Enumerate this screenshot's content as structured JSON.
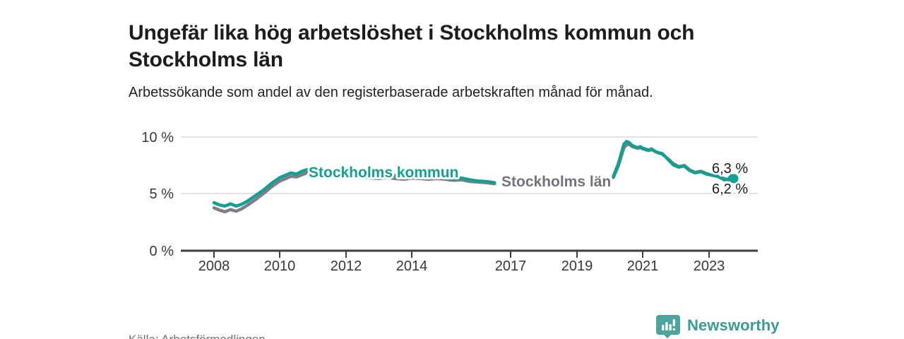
{
  "header": {
    "title": "Ungefär lika hög arbetslöshet i Stockholms kommun och Stockholms län",
    "subtitle": "Arbetssökande som andel av den registerbaserade arbetskraften månad för månad."
  },
  "footer": {
    "source": "Källa: Arbetsförmedlingen",
    "brand_name": "Newsworthy",
    "brand_icon": "bar-chart-speech-bubble-icon"
  },
  "colors": {
    "kommun_line": "#11a092",
    "lan_line": "#7e7e84",
    "kommun_label": "#11a092",
    "lan_label": "#73737b",
    "grid": "#dbdbdb",
    "axis": "#3f3f41",
    "title_text": "#1c1c1a",
    "muted_text": "#6f6f78",
    "brand_teal": "#3c9b94",
    "logo_bubble": "#4ba49e"
  },
  "chart_data": {
    "type": "line",
    "title": "Ungefär lika hög arbetslöshet i Stockholms kommun och Stockholms län",
    "subtitle": "Arbetssökande som andel av den registerbaserade arbetskraften månad för månad.",
    "unit": "%",
    "xlabel": "",
    "ylabel": "",
    "ylim": [
      0,
      10
    ],
    "x_range": [
      2006.9,
      2024.5
    ],
    "grid": "horizontal-only",
    "legend_position": "inline-labels-on-lines",
    "gap_note": "no line is drawn between ~2016.6 and ~2020.1; the 'Stockholms län' label occupies that space",
    "y_ticks": [
      {
        "value": 0,
        "label": "0 %"
      },
      {
        "value": 5,
        "label": "5 %"
      },
      {
        "value": 10,
        "label": "10 %"
      }
    ],
    "x_ticks": [
      {
        "value": 2008,
        "label": "2008"
      },
      {
        "value": 2010,
        "label": "2010"
      },
      {
        "value": 2012,
        "label": "2012"
      },
      {
        "value": 2014,
        "label": "2014"
      },
      {
        "value": 2017,
        "label": "2017"
      },
      {
        "value": 2019,
        "label": "2019"
      },
      {
        "value": 2021,
        "label": "2021"
      },
      {
        "value": 2023,
        "label": "2023"
      }
    ],
    "series": [
      {
        "name": "Stockholms kommun",
        "color": "#11a092",
        "end_label": "6,3 %",
        "end_value": 6.3,
        "segments": [
          [
            [
              2008.0,
              4.2
            ],
            [
              2008.17,
              4.0
            ],
            [
              2008.33,
              3.9
            ],
            [
              2008.5,
              4.1
            ],
            [
              2008.67,
              3.9
            ],
            [
              2008.83,
              4.05
            ],
            [
              2009.0,
              4.3
            ],
            [
              2009.25,
              4.8
            ],
            [
              2009.5,
              5.3
            ],
            [
              2009.75,
              5.9
            ],
            [
              2010.0,
              6.4
            ],
            [
              2010.17,
              6.6
            ],
            [
              2010.33,
              6.8
            ],
            [
              2010.5,
              6.7
            ],
            [
              2010.67,
              6.95
            ],
            [
              2010.83,
              7.1
            ],
            [
              2011.0,
              6.95
            ],
            [
              2011.17,
              7.15
            ],
            [
              2011.33,
              7.0
            ],
            [
              2011.5,
              7.05
            ],
            [
              2011.75,
              6.9
            ],
            [
              2012.0,
              6.8
            ],
            [
              2012.25,
              6.7
            ],
            [
              2012.5,
              6.75
            ],
            [
              2012.75,
              6.65
            ],
            [
              2013.0,
              6.6
            ],
            [
              2013.25,
              6.65
            ],
            [
              2013.5,
              6.55
            ],
            [
              2013.75,
              6.5
            ],
            [
              2014.0,
              6.55
            ],
            [
              2014.25,
              6.5
            ],
            [
              2014.5,
              6.45
            ],
            [
              2014.75,
              6.5
            ],
            [
              2015.0,
              6.4
            ],
            [
              2015.25,
              6.3
            ],
            [
              2015.5,
              6.35
            ],
            [
              2015.75,
              6.2
            ],
            [
              2016.0,
              6.1
            ],
            [
              2016.25,
              6.05
            ],
            [
              2016.5,
              5.95
            ]
          ],
          [
            [
              2020.1,
              6.5
            ],
            [
              2020.25,
              7.6
            ],
            [
              2020.42,
              9.3
            ],
            [
              2020.5,
              9.55
            ],
            [
              2020.58,
              9.45
            ],
            [
              2020.67,
              9.2
            ],
            [
              2020.83,
              9.0
            ],
            [
              2020.92,
              9.1
            ],
            [
              2021.0,
              8.95
            ],
            [
              2021.17,
              8.8
            ],
            [
              2021.25,
              8.9
            ],
            [
              2021.42,
              8.6
            ],
            [
              2021.58,
              8.5
            ],
            [
              2021.75,
              8.0
            ],
            [
              2021.92,
              7.5
            ],
            [
              2022.08,
              7.3
            ],
            [
              2022.25,
              7.4
            ],
            [
              2022.42,
              7.0
            ],
            [
              2022.58,
              6.8
            ],
            [
              2022.75,
              6.9
            ],
            [
              2022.92,
              6.7
            ],
            [
              2023.08,
              6.6
            ],
            [
              2023.25,
              6.5
            ],
            [
              2023.33,
              6.4
            ],
            [
              2023.46,
              6.2
            ],
            [
              2023.58,
              6.25
            ],
            [
              2023.67,
              6.55
            ],
            [
              2023.75,
              6.3
            ]
          ]
        ]
      },
      {
        "name": "Stockholms län",
        "color": "#7e7e84",
        "end_label": "6,2 %",
        "end_value": 6.2,
        "segments": [
          [
            [
              2008.0,
              3.75
            ],
            [
              2008.17,
              3.55
            ],
            [
              2008.33,
              3.4
            ],
            [
              2008.5,
              3.6
            ],
            [
              2008.67,
              3.45
            ],
            [
              2008.83,
              3.65
            ],
            [
              2009.0,
              3.95
            ],
            [
              2009.25,
              4.45
            ],
            [
              2009.5,
              5.0
            ],
            [
              2009.75,
              5.6
            ],
            [
              2010.0,
              6.1
            ],
            [
              2010.17,
              6.3
            ],
            [
              2010.33,
              6.5
            ],
            [
              2010.5,
              6.45
            ],
            [
              2010.67,
              6.65
            ],
            [
              2010.83,
              6.8
            ],
            [
              2011.0,
              6.7
            ],
            [
              2011.17,
              6.85
            ],
            [
              2011.33,
              6.7
            ],
            [
              2011.5,
              6.75
            ],
            [
              2011.75,
              6.6
            ],
            [
              2012.0,
              6.5
            ],
            [
              2012.25,
              6.4
            ],
            [
              2012.5,
              6.45
            ],
            [
              2012.75,
              6.35
            ],
            [
              2013.0,
              6.3
            ],
            [
              2013.25,
              6.4
            ],
            [
              2013.5,
              6.3
            ],
            [
              2013.75,
              6.25
            ],
            [
              2014.0,
              6.35
            ],
            [
              2014.25,
              6.3
            ],
            [
              2014.5,
              6.25
            ],
            [
              2014.75,
              6.3
            ],
            [
              2015.0,
              6.25
            ],
            [
              2015.25,
              6.15
            ],
            [
              2015.5,
              6.2
            ],
            [
              2015.75,
              6.05
            ],
            [
              2016.0,
              6.0
            ],
            [
              2016.25,
              5.95
            ],
            [
              2016.5,
              5.85
            ]
          ],
          [
            [
              2020.1,
              6.4
            ],
            [
              2020.25,
              7.4
            ],
            [
              2020.42,
              9.0
            ],
            [
              2020.5,
              9.25
            ],
            [
              2020.58,
              9.3
            ],
            [
              2020.67,
              9.1
            ],
            [
              2020.83,
              8.95
            ],
            [
              2020.92,
              9.0
            ],
            [
              2021.0,
              8.9
            ],
            [
              2021.17,
              8.75
            ],
            [
              2021.25,
              8.85
            ],
            [
              2021.42,
              8.6
            ],
            [
              2021.58,
              8.45
            ],
            [
              2021.75,
              8.05
            ],
            [
              2021.92,
              7.6
            ],
            [
              2022.08,
              7.35
            ],
            [
              2022.25,
              7.45
            ],
            [
              2022.42,
              7.05
            ],
            [
              2022.58,
              6.85
            ],
            [
              2022.75,
              6.95
            ],
            [
              2022.92,
              6.75
            ],
            [
              2023.08,
              6.6
            ],
            [
              2023.25,
              6.5
            ],
            [
              2023.42,
              6.35
            ],
            [
              2023.58,
              6.2
            ],
            [
              2023.75,
              6.2
            ]
          ]
        ]
      }
    ],
    "end_dot": {
      "series": "Stockholms kommun",
      "x": 2023.75,
      "y": 6.3
    }
  }
}
